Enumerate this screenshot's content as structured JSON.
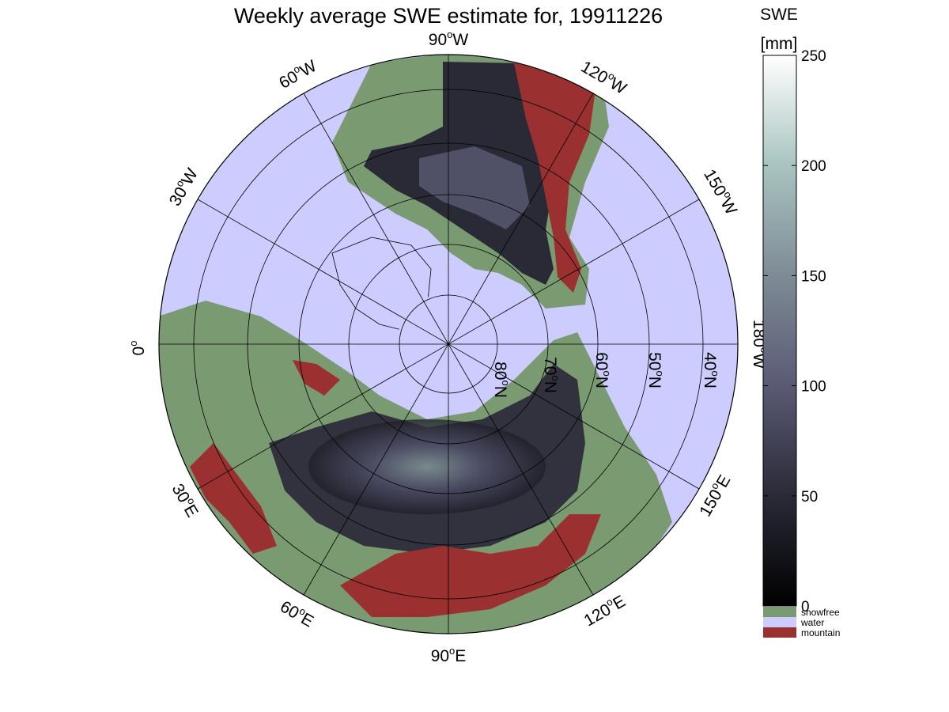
{
  "title": "Weekly average SWE estimate for, 19911226",
  "colorbar": {
    "label_line1": "SWE",
    "label_line2": "[mm]",
    "ticks": [
      0,
      50,
      100,
      150,
      200,
      250
    ],
    "range": [
      0,
      250
    ],
    "gradient": [
      "#000000",
      "#2a2a38",
      "#5a5a74",
      "#7e8b95",
      "#a8c4c0",
      "#ffffff"
    ],
    "categories": [
      {
        "label": "snowfree",
        "color": "#7a9a72"
      },
      {
        "label": "water",
        "color": "#ccccff"
      },
      {
        "label": "mountain",
        "color": "#9a3030"
      }
    ]
  },
  "map": {
    "projection": "north polar stereographic",
    "ocean_color": "#ccccff",
    "land_color": "#7a9a72",
    "mountain_color": "#9a3030",
    "snow_color": "#3c3c4c",
    "meridian_labels": [
      {
        "deg": "90",
        "hem": "W"
      },
      {
        "deg": "120",
        "hem": "W"
      },
      {
        "deg": "150",
        "hem": "W"
      },
      {
        "deg": "180",
        "hem": "W"
      },
      {
        "deg": "150",
        "hem": "E"
      },
      {
        "deg": "120",
        "hem": "E"
      },
      {
        "deg": "90",
        "hem": "E"
      },
      {
        "deg": "60",
        "hem": "E"
      },
      {
        "deg": "30",
        "hem": "E"
      },
      {
        "deg": "0",
        "hem": ""
      },
      {
        "deg": "30",
        "hem": "W"
      },
      {
        "deg": "60",
        "hem": "W"
      }
    ],
    "parallel_labels": [
      {
        "deg": "80",
        "hem": "N"
      },
      {
        "deg": "70",
        "hem": "N"
      },
      {
        "deg": "60",
        "hem": "N"
      },
      {
        "deg": "50",
        "hem": "N"
      },
      {
        "deg": "40",
        "hem": "N"
      }
    ]
  }
}
